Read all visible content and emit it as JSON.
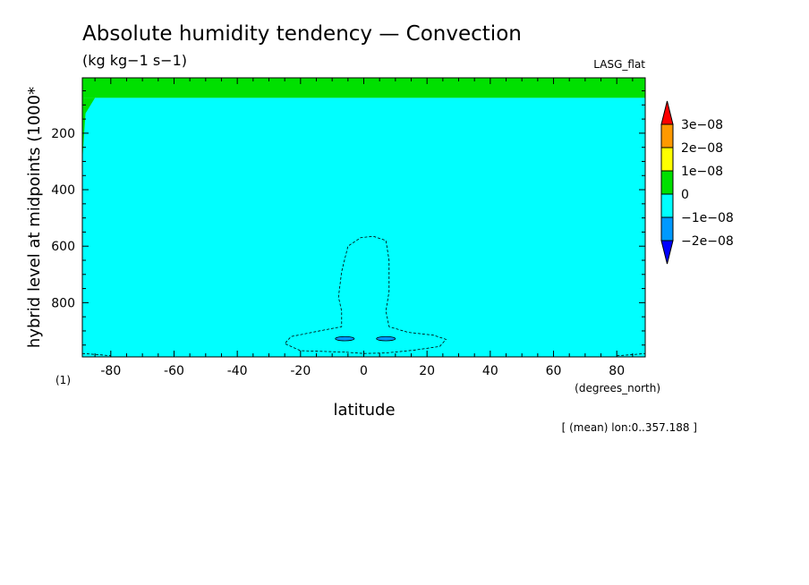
{
  "chart_data": {
    "type": "heatmap",
    "title": "Absolute humidity tendency — Convection",
    "units": "(kg kg−1 s−1)",
    "model": "LASG_flat",
    "xlabel": "latitude",
    "xunits": "(degrees_north)",
    "ylabel": "hybrid level at midpoints (1000*",
    "yunits": "(1)",
    "footnote": "[ (mean) lon:0..357.188 ]",
    "xlim": [
      -89,
      89
    ],
    "ylim": [
      992,
      4
    ],
    "x_ticks": [
      -80,
      -60,
      -40,
      -20,
      0,
      20,
      40,
      60,
      80
    ],
    "y_ticks": [
      200,
      400,
      600,
      800
    ],
    "legend_levels": [
      "3e−08",
      "2e−08",
      "1e−08",
      "0",
      "−1e−08",
      "−2e−08"
    ],
    "legend_colors": [
      "#ff0000",
      "#ff9900",
      "#ffff00",
      "#00e000",
      "#00ffff",
      "#0099ff",
      "#0000ff"
    ],
    "regions": [
      {
        "name": "0 to 1e−08",
        "color": "#00e000",
        "y_range": [
          4,
          75
        ],
        "x_range": [
          -89,
          89
        ]
      },
      {
        "name": "−1e−08 to 0",
        "color": "#00ffff",
        "y_range": [
          75,
          992
        ],
        "x_range": [
          -89,
          89
        ]
      }
    ],
    "contours_dashed": [
      {
        "level": "−1e−08",
        "points": [
          [
            -6,
            975
          ],
          [
            -20,
            970
          ],
          [
            -25,
            945
          ],
          [
            -23,
            920
          ],
          [
            -14,
            900
          ],
          [
            -7,
            885
          ],
          [
            -7,
            830
          ],
          [
            -8,
            780
          ],
          [
            -7,
            690
          ],
          [
            -5,
            600
          ],
          [
            -1,
            570
          ],
          [
            3,
            565
          ],
          [
            7,
            580
          ],
          [
            8,
            650
          ],
          [
            8,
            760
          ],
          [
            7,
            830
          ],
          [
            8,
            885
          ],
          [
            14,
            905
          ],
          [
            22,
            915
          ],
          [
            26,
            930
          ],
          [
            24,
            955
          ],
          [
            16,
            968
          ],
          [
            7,
            978
          ],
          [
            0,
            980
          ],
          [
            -6,
            975
          ]
        ]
      },
      {
        "level": "−1e−08",
        "points": [
          [
            -89,
            980
          ],
          [
            -84,
            984
          ],
          [
            -80,
            988
          ]
        ]
      },
      {
        "level": "−1e−08",
        "points": [
          [
            80,
            988
          ],
          [
            85,
            984
          ],
          [
            89,
            980
          ]
        ]
      }
    ],
    "blobs_blue": [
      {
        "x": [
          -9,
          -3
        ],
        "y": [
          920,
          935
        ]
      },
      {
        "x": [
          4,
          10
        ],
        "y": [
          920,
          935
        ]
      }
    ]
  }
}
